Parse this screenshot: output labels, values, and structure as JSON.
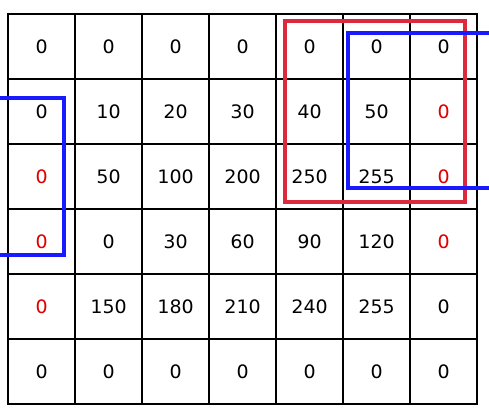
{
  "matrix": {
    "rows": [
      [
        "0",
        "0",
        "0",
        "0",
        "0",
        "0",
        "0"
      ],
      [
        "0",
        "10",
        "20",
        "30",
        "40",
        "50",
        "0"
      ],
      [
        "0",
        "50",
        "100",
        "200",
        "250",
        "255",
        "0"
      ],
      [
        "0",
        "0",
        "30",
        "60",
        "90",
        "120",
        "0"
      ],
      [
        "0",
        "150",
        "180",
        "210",
        "240",
        "255",
        "0"
      ],
      [
        "0",
        "0",
        "0",
        "0",
        "0",
        "0",
        "0"
      ]
    ],
    "highlight_red": [
      [
        1,
        6
      ],
      [
        2,
        0
      ],
      [
        2,
        6
      ],
      [
        3,
        0
      ],
      [
        3,
        6
      ],
      [
        4,
        0
      ]
    ]
  },
  "colors": {
    "text": "#000000",
    "highlight_text": "#e00000",
    "red_box": "#dc2a3c",
    "blue_box": "#1a1aff"
  }
}
